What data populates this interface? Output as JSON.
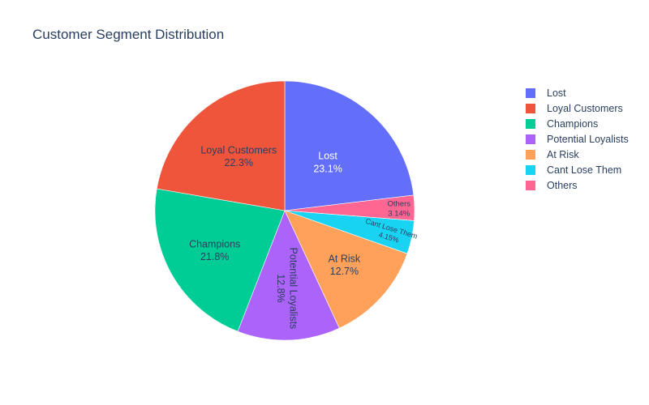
{
  "chart_data": {
    "type": "pie",
    "title": "Customer Segment Distribution",
    "direction": "clockwise",
    "legend_position": "right",
    "slices": [
      {
        "label": "Lost",
        "percent": 23.1,
        "percent_text": "23.1%",
        "color": "#636efa"
      },
      {
        "label": "Others",
        "percent": 3.14,
        "percent_text": "3.14%",
        "color": "#ff6692"
      },
      {
        "label": "Cant Lose Them",
        "percent": 4.15,
        "percent_text": "4.15%",
        "color": "#19d3f3"
      },
      {
        "label": "At Risk",
        "percent": 12.7,
        "percent_text": "12.7%",
        "color": "#ffa15a"
      },
      {
        "label": "Potential Loyalists",
        "percent": 12.8,
        "percent_text": "12.8%",
        "color": "#ab63fa"
      },
      {
        "label": "Champions",
        "percent": 21.8,
        "percent_text": "21.8%",
        "color": "#00cc96"
      },
      {
        "label": "Loyal Customers",
        "percent": 22.3,
        "percent_text": "22.3%",
        "color": "#ef553b"
      }
    ],
    "legend": [
      {
        "label": "Lost",
        "color": "#636efa"
      },
      {
        "label": "Loyal Customers",
        "color": "#ef553b"
      },
      {
        "label": "Champions",
        "color": "#00cc96"
      },
      {
        "label": "Potential Loyalists",
        "color": "#ab63fa"
      },
      {
        "label": "At Risk",
        "color": "#ffa15a"
      },
      {
        "label": "Cant Lose Them",
        "color": "#19d3f3"
      },
      {
        "label": "Others",
        "color": "#ff6692"
      }
    ]
  }
}
